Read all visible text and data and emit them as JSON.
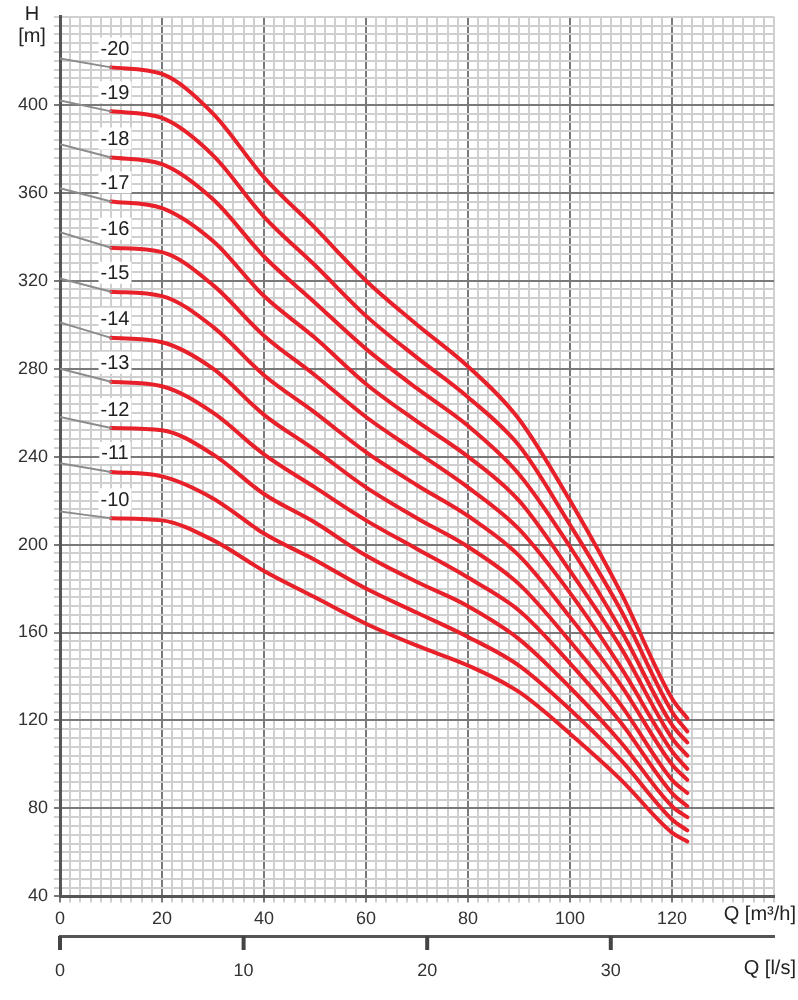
{
  "chart_data": {
    "type": "line",
    "xlabel": "Q [m³/h]",
    "x2label": "Q [l/s]",
    "ylabel": "H [m]",
    "xlim": [
      0,
      140
    ],
    "ylim": [
      40,
      440
    ],
    "x2lim": [
      0,
      38.89
    ],
    "xticks": [
      0,
      {
        "value": 2,
        "label": null
      },
      {
        "value": 4,
        "label": null
      },
      {
        "value": 6,
        "label": null
      },
      {
        "value": 8,
        "label": null
      },
      {
        "value": 10,
        "label": null
      },
      {
        "value": 12,
        "label": null
      },
      {
        "value": 14,
        "label": null
      },
      {
        "value": 16,
        "label": null
      },
      {
        "value": 18,
        "label": null
      },
      20,
      {
        "value": 22,
        "label": null
      },
      {
        "value": 24,
        "label": null
      },
      {
        "value": 26,
        "label": null
      },
      {
        "value": 28,
        "label": null
      },
      {
        "value": 30,
        "label": null
      },
      {
        "value": 32,
        "label": null
      },
      {
        "value": 34,
        "label": null
      },
      {
        "value": 36,
        "label": null
      },
      {
        "value": 38,
        "label": null
      },
      40,
      {
        "value": 42,
        "label": null
      },
      {
        "value": 44,
        "label": null
      },
      {
        "value": 46,
        "label": null
      },
      {
        "value": 48,
        "label": null
      },
      {
        "value": 50,
        "label": null
      },
      {
        "value": 52,
        "label": null
      },
      {
        "value": 54,
        "label": null
      },
      {
        "value": 56,
        "label": null
      },
      {
        "value": 58,
        "label": null
      },
      60,
      {
        "value": 62,
        "label": null
      },
      {
        "value": 64,
        "label": null
      },
      {
        "value": 66,
        "label": null
      },
      {
        "value": 68,
        "label": null
      },
      {
        "value": 70,
        "label": null
      },
      {
        "value": 72,
        "label": null
      },
      {
        "value": 74,
        "label": null
      },
      {
        "value": 76,
        "label": null
      },
      {
        "value": 78,
        "label": null
      },
      80,
      {
        "value": 82,
        "label": null
      },
      {
        "value": 84,
        "label": null
      },
      {
        "value": 86,
        "label": null
      },
      {
        "value": 88,
        "label": null
      },
      {
        "value": 90,
        "label": null
      },
      {
        "value": 92,
        "label": null
      },
      {
        "value": 94,
        "label": null
      },
      {
        "value": 96,
        "label": null
      },
      {
        "value": 98,
        "label": null
      },
      100,
      {
        "value": 102,
        "label": null
      },
      {
        "value": 104,
        "label": null
      },
      {
        "value": 106,
        "label": null
      },
      {
        "value": 108,
        "label": null
      },
      {
        "value": 110,
        "label": null
      },
      {
        "value": 112,
        "label": null
      },
      {
        "value": 114,
        "label": null
      },
      {
        "value": 116,
        "label": null
      },
      {
        "value": 118,
        "label": null
      },
      120,
      {
        "value": 122,
        "label": null
      },
      {
        "value": 124,
        "label": null
      },
      {
        "value": 126,
        "label": null
      },
      {
        "value": 128,
        "label": null
      },
      {
        "value": 130,
        "label": null
      },
      {
        "value": 132,
        "label": null
      },
      {
        "value": 134,
        "label": null
      },
      {
        "value": 136,
        "label": null
      },
      {
        "value": 138,
        "label": null
      },
      {
        "value": 140,
        "label": null
      }
    ],
    "yticks": [
      40,
      {
        "value": 44,
        "label": null
      },
      {
        "value": 48,
        "label": null
      },
      {
        "value": 52,
        "label": null
      },
      {
        "value": 56,
        "label": null
      },
      {
        "value": 60,
        "label": null
      },
      {
        "value": 64,
        "label": null
      },
      {
        "value": 68,
        "label": null
      },
      {
        "value": 72,
        "label": null
      },
      {
        "value": 76,
        "label": null
      },
      80,
      {
        "value": 84,
        "label": null
      },
      {
        "value": 88,
        "label": null
      },
      {
        "value": 92,
        "label": null
      },
      {
        "value": 96,
        "label": null
      },
      {
        "value": 100,
        "label": null
      },
      {
        "value": 104,
        "label": null
      },
      {
        "value": 108,
        "label": null
      },
      {
        "value": 112,
        "label": null
      },
      {
        "value": 116,
        "label": null
      },
      120,
      {
        "value": 124,
        "label": null
      },
      {
        "value": 128,
        "label": null
      },
      {
        "value": 132,
        "label": null
      },
      {
        "value": 136,
        "label": null
      },
      {
        "value": 140,
        "label": null
      },
      {
        "value": 144,
        "label": null
      },
      {
        "value": 148,
        "label": null
      },
      {
        "value": 152,
        "label": null
      },
      {
        "value": 156,
        "label": null
      },
      160,
      {
        "value": 164,
        "label": null
      },
      {
        "value": 168,
        "label": null
      },
      {
        "value": 172,
        "label": null
      },
      {
        "value": 176,
        "label": null
      },
      {
        "value": 180,
        "label": null
      },
      {
        "value": 184,
        "label": null
      },
      {
        "value": 188,
        "label": null
      },
      {
        "value": 192,
        "label": null
      },
      {
        "value": 196,
        "label": null
      },
      200,
      {
        "value": 204,
        "label": null
      },
      {
        "value": 208,
        "label": null
      },
      {
        "value": 212,
        "label": null
      },
      {
        "value": 216,
        "label": null
      },
      {
        "value": 220,
        "label": null
      },
      {
        "value": 224,
        "label": null
      },
      {
        "value": 228,
        "label": null
      },
      {
        "value": 232,
        "label": null
      },
      {
        "value": 236,
        "label": null
      },
      240,
      {
        "value": 244,
        "label": null
      },
      {
        "value": 248,
        "label": null
      },
      {
        "value": 252,
        "label": null
      },
      {
        "value": 256,
        "label": null
      },
      {
        "value": 260,
        "label": null
      },
      {
        "value": 264,
        "label": null
      },
      {
        "value": 268,
        "label": null
      },
      {
        "value": 272,
        "label": null
      },
      {
        "value": 276,
        "label": null
      },
      280,
      {
        "value": 284,
        "label": null
      },
      {
        "value": 288,
        "label": null
      },
      {
        "value": 292,
        "label": null
      },
      {
        "value": 296,
        "label": null
      },
      {
        "value": 300,
        "label": null
      },
      {
        "value": 304,
        "label": null
      },
      {
        "value": 308,
        "label": null
      },
      {
        "value": 312,
        "label": null
      },
      {
        "value": 316,
        "label": null
      },
      320,
      {
        "value": 324,
        "label": null
      },
      {
        "value": 328,
        "label": null
      },
      {
        "value": 332,
        "label": null
      },
      {
        "value": 336,
        "label": null
      },
      {
        "value": 340,
        "label": null
      },
      {
        "value": 344,
        "label": null
      },
      {
        "value": 348,
        "label": null
      },
      {
        "value": 352,
        "label": null
      },
      {
        "value": 356,
        "label": null
      },
      360,
      {
        "value": 364,
        "label": null
      },
      {
        "value": 368,
        "label": null
      },
      {
        "value": 372,
        "label": null
      },
      {
        "value": 376,
        "label": null
      },
      {
        "value": 380,
        "label": null
      },
      {
        "value": 384,
        "label": null
      },
      {
        "value": 388,
        "label": null
      },
      {
        "value": 392,
        "label": null
      },
      {
        "value": 396,
        "label": null
      },
      400,
      {
        "value": 404,
        "label": null
      },
      {
        "value": 408,
        "label": null
      },
      {
        "value": 412,
        "label": null
      },
      {
        "value": 416,
        "label": null
      },
      {
        "value": 420,
        "label": null
      },
      {
        "value": 424,
        "label": null
      },
      {
        "value": 428,
        "label": null
      },
      {
        "value": 432,
        "label": null
      },
      {
        "value": 436,
        "label": null
      },
      {
        "value": 440,
        "label": null
      }
    ],
    "x2ticks": [
      0,
      10,
      20,
      30
    ],
    "grid": true,
    "series": [
      {
        "color": "#8c8c8c",
        "x": [
          0,
          10
        ],
        "values": [
          421,
          417
        ]
      },
      {
        "color": "#8c8c8c",
        "x": [
          0,
          10
        ],
        "values": [
          402,
          397
        ]
      },
      {
        "color": "#8c8c8c",
        "x": [
          0,
          10
        ],
        "values": [
          382,
          376
        ]
      },
      {
        "color": "#8c8c8c",
        "x": [
          0,
          10
        ],
        "values": [
          362,
          356
        ]
      },
      {
        "color": "#8c8c8c",
        "x": [
          0,
          10
        ],
        "values": [
          342,
          335
        ]
      },
      {
        "color": "#8c8c8c",
        "x": [
          0,
          10
        ],
        "values": [
          321,
          315
        ]
      },
      {
        "color": "#8c8c8c",
        "x": [
          0,
          10
        ],
        "values": [
          301,
          294
        ]
      },
      {
        "color": "#8c8c8c",
        "x": [
          0,
          10
        ],
        "values": [
          280,
          274
        ]
      },
      {
        "color": "#8c8c8c",
        "x": [
          0,
          10
        ],
        "values": [
          258,
          253
        ]
      },
      {
        "color": "#8c8c8c",
        "x": [
          0,
          10
        ],
        "values": [
          237,
          233
        ]
      },
      {
        "color": "#8c8c8c",
        "x": [
          0,
          10
        ],
        "values": [
          215,
          212
        ]
      },
      {
        "name": "-20",
        "color": "#e8202a",
        "x": [
          10,
          20,
          30,
          40,
          50,
          60,
          70,
          80,
          90,
          100,
          110,
          120,
          123
        ],
        "values": [
          417,
          414,
          396,
          367,
          344,
          320,
          300,
          281,
          257,
          220,
          178,
          130,
          121
        ]
      },
      {
        "name": "-19",
        "color": "#e8202a",
        "x": [
          10,
          20,
          30,
          40,
          50,
          60,
          70,
          80,
          90,
          100,
          110,
          120,
          123
        ],
        "values": [
          397,
          394,
          377,
          349,
          327,
          304,
          285,
          267,
          245,
          209,
          170,
          124,
          115
        ]
      },
      {
        "name": "-18",
        "color": "#e8202a",
        "x": [
          10,
          20,
          30,
          40,
          50,
          60,
          70,
          80,
          90,
          100,
          110,
          120,
          123
        ],
        "values": [
          376,
          373,
          357,
          331,
          310,
          289,
          271,
          254,
          232,
          199,
          161,
          118,
          110
        ]
      },
      {
        "name": "-17",
        "color": "#e8202a",
        "x": [
          10,
          20,
          30,
          40,
          50,
          60,
          70,
          80,
          90,
          100,
          110,
          120,
          123
        ],
        "values": [
          356,
          353,
          338,
          313,
          294,
          273,
          256,
          240,
          220,
          188,
          153,
          112,
          104
        ]
      },
      {
        "name": "-16",
        "color": "#e8202a",
        "x": [
          10,
          20,
          30,
          40,
          50,
          60,
          70,
          80,
          90,
          100,
          110,
          120,
          123
        ],
        "values": [
          335,
          333,
          318,
          295,
          277,
          258,
          242,
          226,
          207,
          178,
          144,
          106,
          98
        ]
      },
      {
        "name": "-15",
        "color": "#e8202a",
        "x": [
          10,
          20,
          30,
          40,
          50,
          60,
          70,
          80,
          90,
          100,
          110,
          120,
          123
        ],
        "values": [
          315,
          313,
          299,
          277,
          260,
          242,
          227,
          213,
          195,
          167,
          136,
          100,
          93
        ]
      },
      {
        "name": "-14",
        "color": "#e8202a",
        "x": [
          10,
          20,
          30,
          40,
          50,
          60,
          70,
          80,
          90,
          100,
          110,
          120,
          123
        ],
        "values": [
          294,
          292,
          280,
          259,
          243,
          226,
          212,
          199,
          182,
          156,
          127,
          93,
          87
        ]
      },
      {
        "name": "-13",
        "color": "#e8202a",
        "x": [
          10,
          20,
          30,
          40,
          50,
          60,
          70,
          80,
          90,
          100,
          110,
          120,
          123
        ],
        "values": [
          274,
          272,
          260,
          241,
          226,
          211,
          198,
          185,
          170,
          146,
          119,
          87,
          81
        ]
      },
      {
        "name": "-12",
        "color": "#e8202a",
        "x": [
          10,
          20,
          30,
          40,
          50,
          60,
          70,
          80,
          90,
          100,
          110,
          120,
          123
        ],
        "values": [
          253,
          252,
          241,
          223,
          210,
          195,
          183,
          172,
          157,
          135,
          110,
          81,
          76
        ]
      },
      {
        "name": "-11",
        "color": "#e8202a",
        "x": [
          10,
          20,
          30,
          40,
          50,
          60,
          70,
          80,
          90,
          100,
          110,
          120,
          123
        ],
        "values": [
          233,
          231,
          221,
          205,
          193,
          180,
          169,
          158,
          145,
          125,
          102,
          75,
          70
        ]
      },
      {
        "name": "-10",
        "color": "#e8202a",
        "x": [
          10,
          20,
          30,
          40,
          50,
          60,
          70,
          80,
          90,
          100,
          110,
          120,
          123
        ],
        "values": [
          212,
          211,
          202,
          188,
          176,
          164,
          154,
          145,
          133,
          114,
          93,
          69,
          65
        ]
      }
    ]
  }
}
